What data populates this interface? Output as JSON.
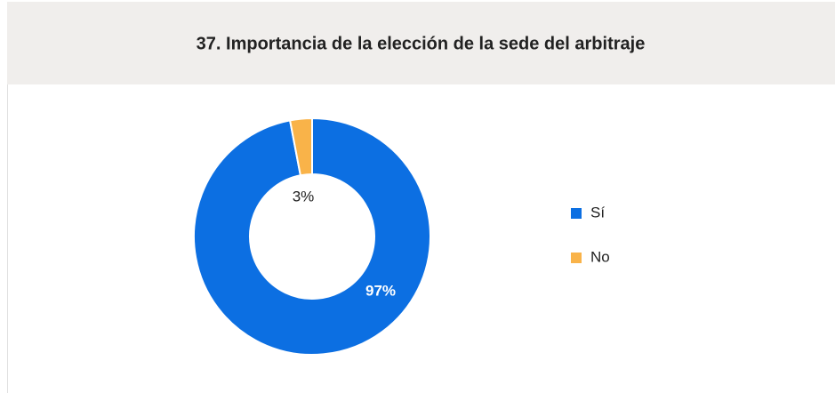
{
  "chart_data": {
    "type": "donut",
    "title": "37. Importancia de la elección de la sede del arbitraje",
    "categories": [
      "Sí",
      "No"
    ],
    "values": [
      97,
      3
    ],
    "value_labels": [
      "97%",
      "3%"
    ],
    "colors": [
      "#0c6fe2",
      "#f9b349"
    ],
    "legend": "right"
  }
}
